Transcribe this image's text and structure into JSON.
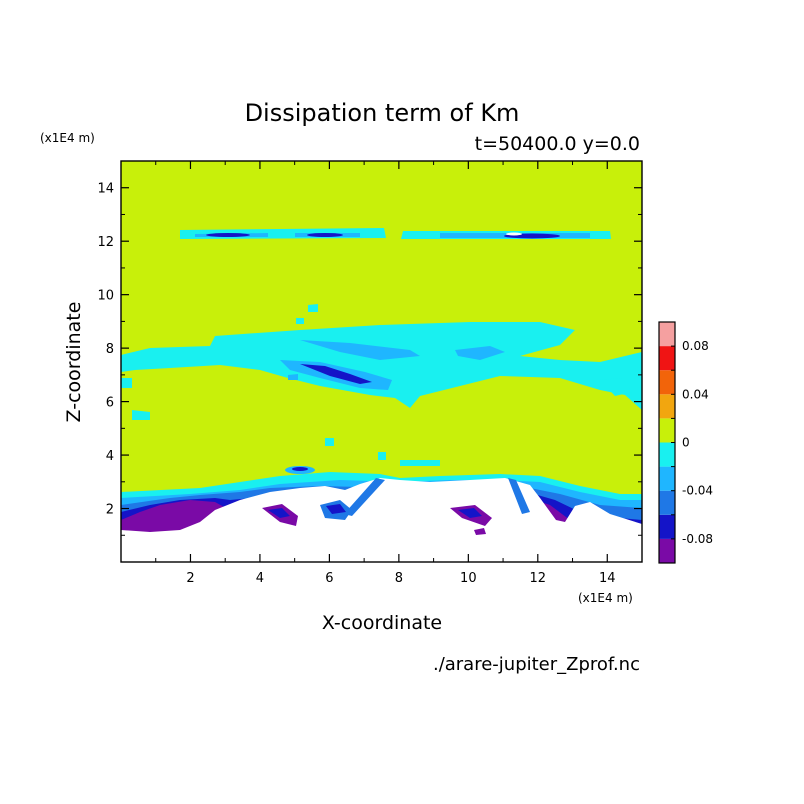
{
  "chart_data": {
    "type": "heatmap",
    "title": "Dissipation term of Km",
    "subtitle": "t=50400.0 y=0.0",
    "xlabel": "X-coordinate",
    "ylabel": "Z-coordinate",
    "x_unit": "(x1E4 m)",
    "y_unit": "(x1E4 m)",
    "source_file": "./arare-jupiter_Zprof.nc",
    "xlim": [
      0,
      15
    ],
    "ylim": [
      0,
      15
    ],
    "x_ticks": [
      2,
      4,
      6,
      8,
      10,
      12,
      14
    ],
    "y_ticks": [
      2,
      4,
      6,
      8,
      10,
      12,
      14
    ],
    "x_tick_labels": [
      "2",
      "4",
      "6",
      "8",
      "10",
      "12",
      "14"
    ],
    "y_tick_labels": [
      "2",
      "4",
      "6",
      "8",
      "10",
      "12",
      "14"
    ],
    "colorbar": {
      "levels": [
        -0.1,
        -0.08,
        -0.06,
        -0.04,
        -0.02,
        0,
        0.02,
        0.04,
        0.06,
        0.08,
        0.1
      ],
      "colors": [
        "#7a0aa6",
        "#1414c8",
        "#1f78e6",
        "#1fb6ff",
        "#19f0f0",
        "#c8f00a",
        "#f2a60f",
        "#f2640a",
        "#f01414",
        "#f5a0a0"
      ],
      "tick_values": [
        0.08,
        0.04,
        0,
        -0.04,
        -0.08
      ],
      "tick_labels": [
        "0.08",
        "0.04",
        "0",
        "-0.04",
        "-0.08"
      ]
    },
    "background_level": "0 to 0.02",
    "features": [
      {
        "region": "upper band",
        "z": [
          12.0,
          12.5
        ],
        "x": [
          1.2,
          14.2
        ],
        "min_value": -0.08
      },
      {
        "region": "middle layer",
        "z": [
          5.8,
          8.9
        ],
        "x": [
          0.6,
          14.8
        ],
        "min_value": -0.08
      },
      {
        "region": "lower boundary",
        "z": [
          1.5,
          3.3
        ],
        "x": [
          0,
          15
        ],
        "min_value": -0.1
      }
    ]
  },
  "colors": {
    "background": "#c8f00a",
    "undefined_region": "#ffffff"
  }
}
